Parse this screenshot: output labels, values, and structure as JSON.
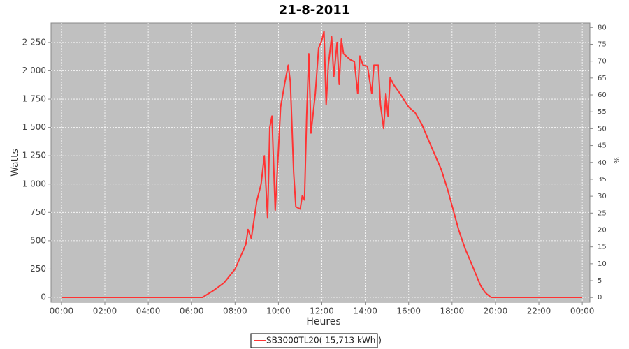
{
  "chart_data": {
    "type": "line",
    "title": "21-8-2011",
    "x_label": "Heures",
    "y_label": "Watts",
    "y2_label": "%",
    "x": [
      0,
      6.5,
      7.0,
      7.5,
      8.0,
      8.3,
      8.5,
      8.6,
      8.75,
      8.9,
      9.0,
      9.2,
      9.35,
      9.5,
      9.6,
      9.7,
      9.85,
      10.0,
      10.1,
      10.3,
      10.45,
      10.55,
      10.7,
      10.8,
      11.0,
      11.1,
      11.2,
      11.3,
      11.4,
      11.5,
      11.7,
      11.85,
      12.0,
      12.1,
      12.2,
      12.3,
      12.45,
      12.55,
      12.7,
      12.8,
      12.9,
      13.0,
      13.3,
      13.5,
      13.65,
      13.75,
      13.9,
      14.1,
      14.3,
      14.4,
      14.6,
      14.7,
      14.85,
      14.95,
      15.05,
      15.15,
      15.3,
      15.6,
      16.0,
      16.3,
      16.6,
      17.0,
      17.5,
      17.8,
      18.0,
      18.3,
      18.6,
      19.0,
      19.3,
      19.5,
      19.6,
      19.8,
      24.0
    ],
    "series": [
      {
        "name": "SB3000TL20( 15,713 kWh )",
        "color": "#ff3333",
        "values": [
          0,
          0,
          60,
          130,
          250,
          380,
          470,
          600,
          520,
          720,
          850,
          1000,
          1250,
          700,
          1500,
          1600,
          770,
          1300,
          1680,
          1900,
          2050,
          1900,
          1100,
          800,
          780,
          900,
          860,
          1600,
          2150,
          1450,
          1800,
          2200,
          2270,
          2350,
          1700,
          2050,
          2300,
          1950,
          2250,
          1880,
          2280,
          2150,
          2100,
          2080,
          1800,
          2130,
          2050,
          2040,
          1800,
          2050,
          2050,
          1700,
          1490,
          1800,
          1600,
          1940,
          1880,
          1800,
          1680,
          1630,
          1530,
          1350,
          1130,
          950,
          810,
          600,
          430,
          250,
          110,
          50,
          30,
          0,
          0
        ]
      }
    ],
    "xlim": [
      -0.48,
      24.35
    ],
    "xticks": [
      {
        "value": 0,
        "label": "00:00"
      },
      {
        "value": 2,
        "label": "02:00"
      },
      {
        "value": 4,
        "label": "04:00"
      },
      {
        "value": 6,
        "label": "06:00"
      },
      {
        "value": 8,
        "label": "08:00"
      },
      {
        "value": 10,
        "label": "10:00"
      },
      {
        "value": 12,
        "label": "12:00"
      },
      {
        "value": 14,
        "label": "14:00"
      },
      {
        "value": 16,
        "label": "16:00"
      },
      {
        "value": 18,
        "label": "18:00"
      },
      {
        "value": 20,
        "label": "20:00"
      },
      {
        "value": 22,
        "label": "22:00"
      },
      {
        "value": 24,
        "label": "00:00"
      }
    ],
    "ylim": [
      -43,
      2422
    ],
    "yticks": [
      0,
      250,
      500,
      750,
      {
        "value": 1000,
        "label": "1 000"
      },
      {
        "value": 1250,
        "label": "1 250"
      },
      {
        "value": 1500,
        "label": "1 500"
      },
      {
        "value": 1750,
        "label": "1 750"
      },
      {
        "value": 2000,
        "label": "2 000"
      },
      {
        "value": 2250,
        "label": "2 250"
      }
    ],
    "y2lim": [
      -1.4,
      81.3
    ],
    "y2ticks": [
      0,
      5,
      10,
      15,
      20,
      25,
      30,
      35,
      40,
      45,
      50,
      55,
      60,
      65,
      70,
      75,
      80
    ],
    "grid": true
  }
}
